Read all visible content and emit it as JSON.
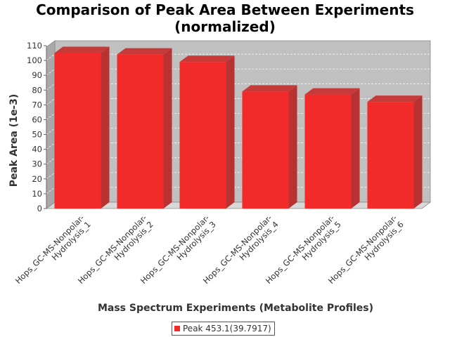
{
  "chart_data": {
    "type": "bar",
    "title": "Comparison of Peak Area Between Experiments (normalized)",
    "title_lines": [
      "Comparison of Peak Area Between Experiments",
      "(normalized)"
    ],
    "xlabel": "Mass Spectrum Experiments (Metabolite Profiles)",
    "ylabel": "Peak Area (1e-3)",
    "categories": [
      "Hops_GC-MS-Nonpolar-Hydrolysis_1",
      "Hops_GC-MS-Nonpolar-Hydrolysis_2",
      "Hops_GC-MS-Nonpolar-Hydrolysis_3",
      "Hops_GC-MS-Nonpolar-Hydrolysis_4",
      "Hops_GC-MS-Nonpolar-Hydrolysis_5",
      "Hops_GC-MS-Nonpolar-Hydrolysis_6"
    ],
    "category_lines": [
      [
        "Hops_GC-MS-Nonpolar-",
        "Hydrolysis_1"
      ],
      [
        "Hops_GC-MS-Nonpolar-",
        "Hydrolysis_2"
      ],
      [
        "Hops_GC-MS-Nonpolar-",
        "Hydrolysis_3"
      ],
      [
        "Hops_GC-MS-Nonpolar-",
        "Hydrolysis_4"
      ],
      [
        "Hops_GC-MS-Nonpolar-",
        "Hydrolysis_5"
      ],
      [
        "Hops_GC-MS-Nonpolar-",
        "Hydrolysis_6"
      ]
    ],
    "series": [
      {
        "name": "Peak 453.1(39.7917)",
        "values": [
          105,
          104,
          99,
          79,
          77,
          72
        ],
        "color": "#f22a2a"
      }
    ],
    "ylim": [
      0,
      110
    ],
    "yticks": [
      "0",
      "10",
      "20",
      "30",
      "40",
      "50",
      "60",
      "70",
      "80",
      "90",
      "100",
      "110"
    ],
    "grid": true,
    "style": "3d",
    "legend_position": "bottom"
  }
}
